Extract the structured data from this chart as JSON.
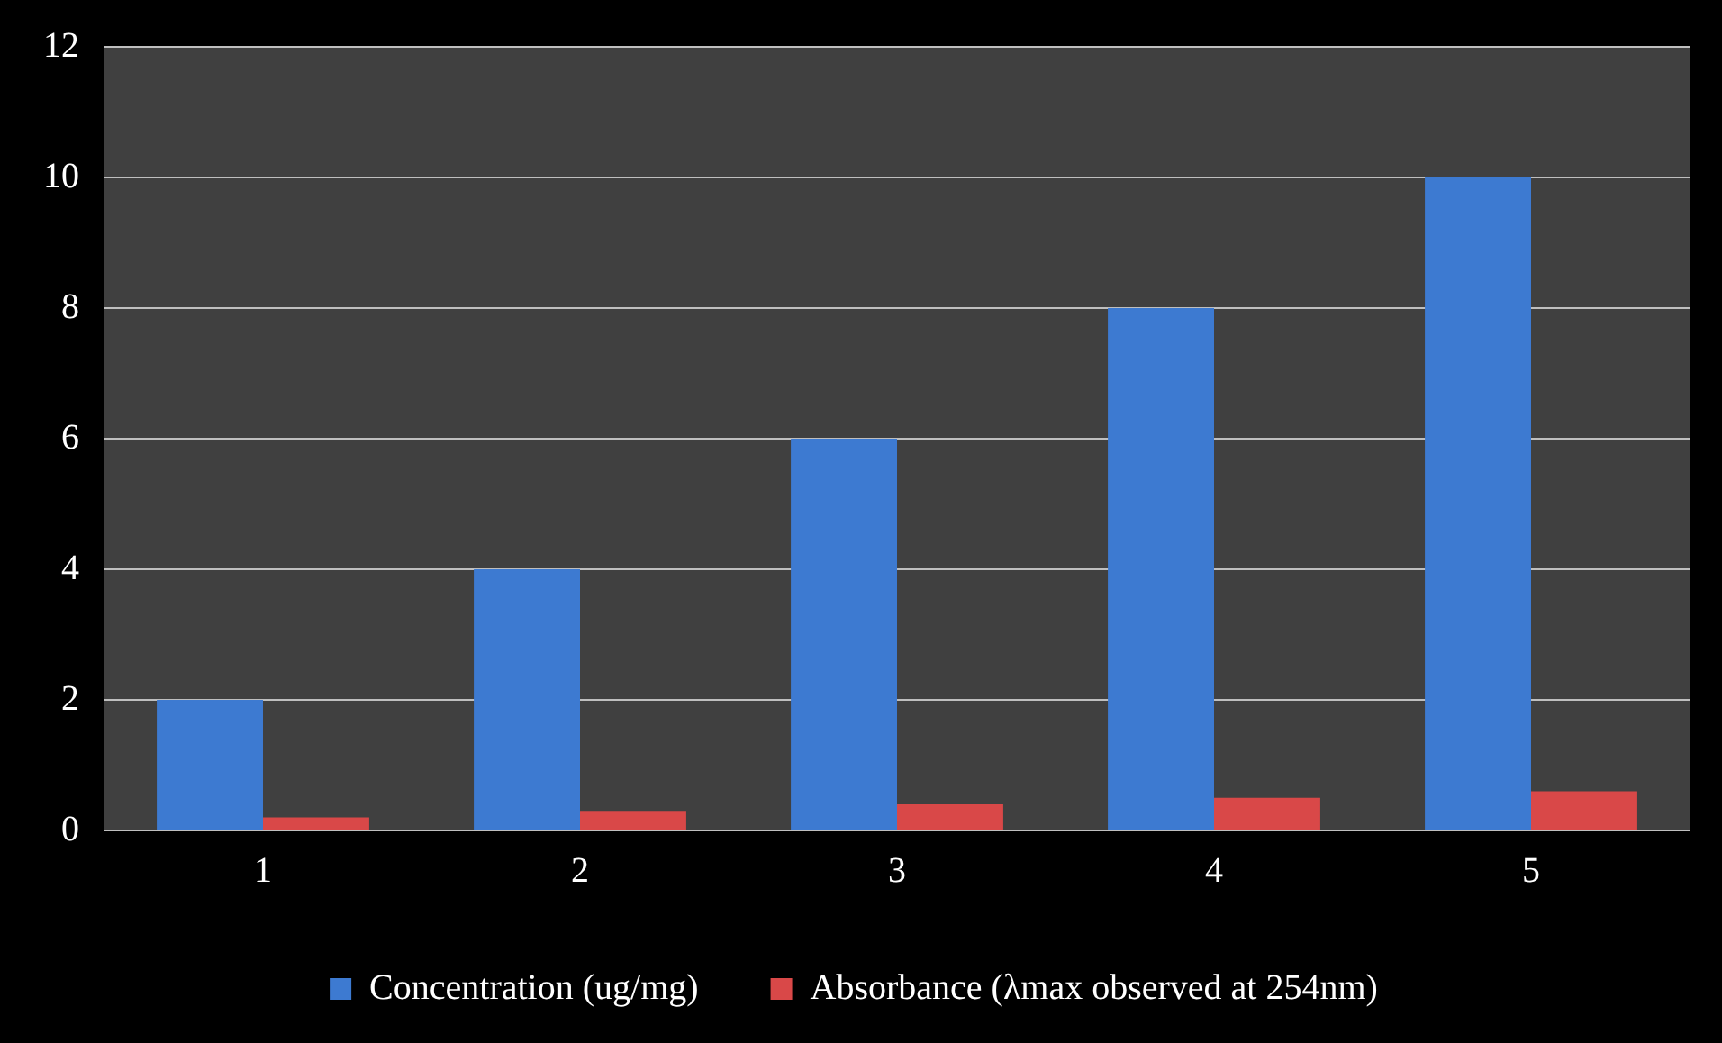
{
  "chart_data": {
    "type": "bar",
    "categories": [
      "1",
      "2",
      "3",
      "4",
      "5"
    ],
    "series": [
      {
        "name": "Concentration (ug/mg)",
        "color": "#3d7ad1",
        "values": [
          2,
          4,
          6,
          8,
          10
        ]
      },
      {
        "name": "Absorbance (λmax observed at 254nm)",
        "color": "#d94848",
        "values": [
          0.2,
          0.3,
          0.4,
          0.5,
          0.6
        ]
      }
    ],
    "ylim": [
      0,
      12
    ],
    "yticks": [
      0,
      2,
      4,
      6,
      8,
      10,
      12
    ],
    "grid": "y",
    "legend": "bottom"
  }
}
